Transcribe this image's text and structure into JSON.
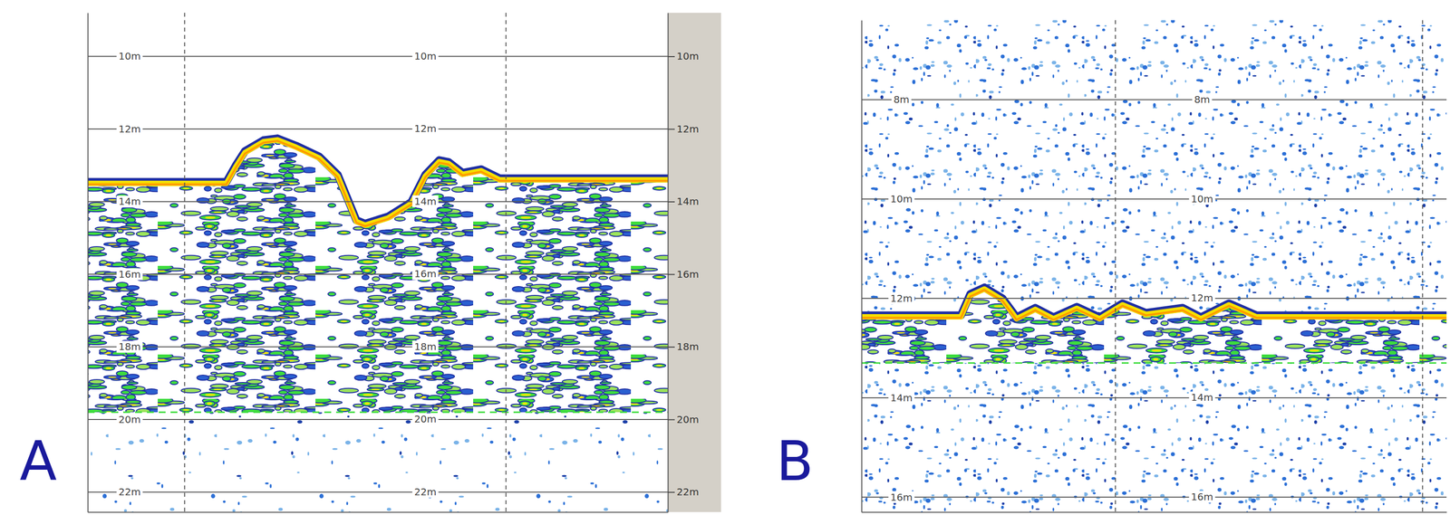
{
  "chart_data": [
    {
      "type": "echogram",
      "title": "A",
      "x": [
        0,
        23.9,
        25.5,
        27.1,
        30.3,
        32.7,
        35.9,
        39.9,
        43.1,
        46.3,
        47.8,
        51.8,
        55.8,
        58.2,
        60.6,
        62.2,
        64.6,
        67.8,
        71.0,
        100
      ],
      "series": [
        {
          "color": "#f5e000",
          "values": [
            13.5,
            13.5,
            13.05,
            12.65,
            12.35,
            12.3,
            12.5,
            12.8,
            13.3,
            14.55,
            14.65,
            14.45,
            14.05,
            13.3,
            12.9,
            12.95,
            13.25,
            13.15,
            13.4,
            13.4
          ]
        },
        {
          "color": "#3ddc3d",
          "values": [
            19.8,
            19.8,
            19.8,
            19.8,
            19.8,
            19.8,
            19.8,
            19.8,
            19.8,
            19.8,
            19.8,
            19.8,
            19.8,
            19.8,
            19.8,
            19.8,
            19.8,
            19.8,
            19.8,
            19.8
          ]
        }
      ],
      "xlim": [
        0,
        100
      ],
      "ylim": [
        8.8,
        22.55
      ],
      "yticks": [
        {
          "value": 10,
          "label": "10m"
        },
        {
          "value": 12,
          "label": "12m"
        },
        {
          "value": 14,
          "label": "14m"
        },
        {
          "value": 16,
          "label": "16m"
        },
        {
          "value": 18,
          "label": "18m"
        },
        {
          "value": 20,
          "label": "20m"
        },
        {
          "value": 22,
          "label": "22m"
        }
      ],
      "grid": true,
      "tick_labels": "y"
    },
    {
      "type": "echogram",
      "title": "B",
      "x": [
        0,
        17.0,
        18.6,
        21.0,
        24.1,
        26.5,
        29.7,
        32.8,
        36.8,
        40.7,
        44.6,
        48.6,
        54.9,
        58.0,
        62.8,
        67.5,
        100
      ],
      "series": [
        {
          "color": "#f5e000",
          "values": [
            12.37,
            12.37,
            11.94,
            11.81,
            12.03,
            12.41,
            12.22,
            12.41,
            12.2,
            12.41,
            12.13,
            12.32,
            12.22,
            12.41,
            12.13,
            12.37,
            12.37
          ]
        },
        {
          "color": "#3ddc3d",
          "values": [
            13.3,
            13.3,
            13.3,
            13.3,
            13.3,
            13.3,
            13.3,
            13.3,
            13.3,
            13.3,
            13.3,
            13.3,
            13.3,
            13.3,
            13.3,
            13.3,
            13.3
          ]
        }
      ],
      "xlim": [
        0,
        100
      ],
      "ylim": [
        6.4,
        16.3
      ],
      "yticks": [
        {
          "value": 8,
          "label": "8m"
        },
        {
          "value": 10,
          "label": "10m"
        },
        {
          "value": 12,
          "label": "12m"
        },
        {
          "value": 14,
          "label": "14m"
        },
        {
          "value": 16,
          "label": "16m"
        }
      ],
      "grid": true,
      "tick_labels": "y"
    }
  ]
}
